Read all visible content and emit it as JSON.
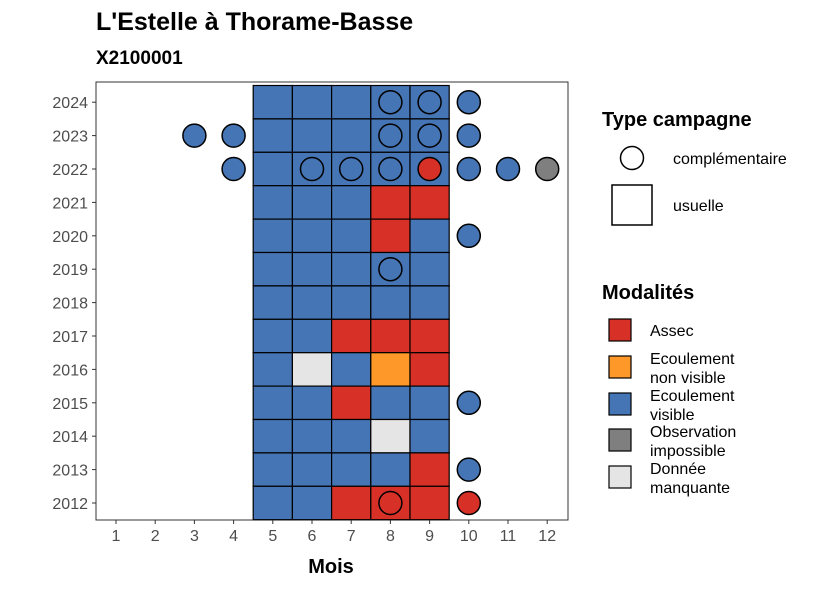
{
  "chart_data": {
    "type": "heatmap",
    "title": "L'Estelle à Thorame-Basse",
    "subtitle": "X2100001",
    "xlabel": "Mois",
    "ylabel": "",
    "x_ticks": [
      "1",
      "2",
      "3",
      "4",
      "5",
      "6",
      "7",
      "8",
      "9",
      "10",
      "11",
      "12"
    ],
    "y_ticks": [
      "2024",
      "2023",
      "2022",
      "2021",
      "2020",
      "2019",
      "2018",
      "2017",
      "2016",
      "2015",
      "2014",
      "2013",
      "2012"
    ],
    "xlim": [
      1,
      12
    ],
    "ylim": [
      2012,
      2024
    ],
    "grid": false,
    "colors": {
      "Assec": "#D73027",
      "Ecoulement non visible": "#FE9929",
      "Ecoulement visible": "#4575B4",
      "Observation impossible": "#7F7F7F",
      "Donnée manquante": "#E5E5E5"
    },
    "usuelle": [
      {
        "year": 2024,
        "months": {
          "5": "Ecoulement visible",
          "6": "Ecoulement visible",
          "7": "Ecoulement visible",
          "8": "Ecoulement visible",
          "9": "Ecoulement visible"
        }
      },
      {
        "year": 2023,
        "months": {
          "5": "Ecoulement visible",
          "6": "Ecoulement visible",
          "7": "Ecoulement visible",
          "8": "Ecoulement visible",
          "9": "Ecoulement visible"
        }
      },
      {
        "year": 2022,
        "months": {
          "5": "Ecoulement visible",
          "6": "Ecoulement visible",
          "7": "Ecoulement visible",
          "8": "Ecoulement visible",
          "9": "Ecoulement visible"
        }
      },
      {
        "year": 2021,
        "months": {
          "5": "Ecoulement visible",
          "6": "Ecoulement visible",
          "7": "Ecoulement visible",
          "8": "Assec",
          "9": "Assec"
        }
      },
      {
        "year": 2020,
        "months": {
          "5": "Ecoulement visible",
          "6": "Ecoulement visible",
          "7": "Ecoulement visible",
          "8": "Assec",
          "9": "Ecoulement visible"
        }
      },
      {
        "year": 2019,
        "months": {
          "5": "Ecoulement visible",
          "6": "Ecoulement visible",
          "7": "Ecoulement visible",
          "8": "Ecoulement visible",
          "9": "Ecoulement visible"
        }
      },
      {
        "year": 2018,
        "months": {
          "5": "Ecoulement visible",
          "6": "Ecoulement visible",
          "7": "Ecoulement visible",
          "8": "Ecoulement visible",
          "9": "Ecoulement visible"
        }
      },
      {
        "year": 2017,
        "months": {
          "5": "Ecoulement visible",
          "6": "Ecoulement visible",
          "7": "Assec",
          "8": "Assec",
          "9": "Assec"
        }
      },
      {
        "year": 2016,
        "months": {
          "5": "Ecoulement visible",
          "6": "Donnée manquante",
          "7": "Ecoulement visible",
          "8": "Ecoulement non visible",
          "9": "Assec"
        }
      },
      {
        "year": 2015,
        "months": {
          "5": "Ecoulement visible",
          "6": "Ecoulement visible",
          "7": "Assec",
          "8": "Ecoulement visible",
          "9": "Ecoulement visible"
        }
      },
      {
        "year": 2014,
        "months": {
          "5": "Ecoulement visible",
          "6": "Ecoulement visible",
          "7": "Ecoulement visible",
          "8": "Donnée manquante",
          "9": "Ecoulement visible"
        }
      },
      {
        "year": 2013,
        "months": {
          "5": "Ecoulement visible",
          "6": "Ecoulement visible",
          "7": "Ecoulement visible",
          "8": "Ecoulement visible",
          "9": "Assec"
        }
      },
      {
        "year": 2012,
        "months": {
          "5": "Ecoulement visible",
          "6": "Ecoulement visible",
          "7": "Assec",
          "8": "Assec",
          "9": "Assec"
        }
      }
    ],
    "complementaire": [
      {
        "year": 2024,
        "month": 8,
        "modalite": "Ecoulement visible"
      },
      {
        "year": 2024,
        "month": 9,
        "modalite": "Ecoulement visible"
      },
      {
        "year": 2024,
        "month": 10,
        "modalite": "Ecoulement visible"
      },
      {
        "year": 2023,
        "month": 3,
        "modalite": "Ecoulement visible"
      },
      {
        "year": 2023,
        "month": 4,
        "modalite": "Ecoulement visible"
      },
      {
        "year": 2023,
        "month": 8,
        "modalite": "Ecoulement visible"
      },
      {
        "year": 2023,
        "month": 9,
        "modalite": "Ecoulement visible"
      },
      {
        "year": 2023,
        "month": 10,
        "modalite": "Ecoulement visible"
      },
      {
        "year": 2022,
        "month": 4,
        "modalite": "Ecoulement visible"
      },
      {
        "year": 2022,
        "month": 6,
        "modalite": "Ecoulement visible"
      },
      {
        "year": 2022,
        "month": 7,
        "modalite": "Ecoulement visible"
      },
      {
        "year": 2022,
        "month": 8,
        "modalite": "Ecoulement visible"
      },
      {
        "year": 2022,
        "month": 9,
        "modalite": "Assec"
      },
      {
        "year": 2022,
        "month": 10,
        "modalite": "Ecoulement visible"
      },
      {
        "year": 2022,
        "month": 11,
        "modalite": "Ecoulement visible"
      },
      {
        "year": 2022,
        "month": 12,
        "modalite": "Observation impossible"
      },
      {
        "year": 2020,
        "month": 10,
        "modalite": "Ecoulement visible"
      },
      {
        "year": 2019,
        "month": 8,
        "modalite": "Ecoulement visible"
      },
      {
        "year": 2015,
        "month": 10,
        "modalite": "Ecoulement visible"
      },
      {
        "year": 2013,
        "month": 10,
        "modalite": "Ecoulement visible"
      },
      {
        "year": 2012,
        "month": 8,
        "modalite": "Assec"
      },
      {
        "year": 2012,
        "month": 10,
        "modalite": "Assec"
      }
    ],
    "legend": {
      "placement": "right",
      "type_title": "Type campagne",
      "type_items": [
        {
          "label": "complémentaire",
          "shape": "circle"
        },
        {
          "label": "usuelle",
          "shape": "square"
        }
      ],
      "modalites_title": "Modalités",
      "modalites_items": [
        {
          "key": "Assec",
          "lines": [
            "Assec"
          ]
        },
        {
          "key": "Ecoulement non visible",
          "lines": [
            "Ecoulement",
            "non visible"
          ]
        },
        {
          "key": "Ecoulement visible",
          "lines": [
            "Ecoulement",
            "visible"
          ]
        },
        {
          "key": "Observation impossible",
          "lines": [
            "Observation",
            "impossible"
          ]
        },
        {
          "key": "Donnée manquante",
          "lines": [
            "Donnée",
            "manquante"
          ]
        }
      ]
    }
  }
}
